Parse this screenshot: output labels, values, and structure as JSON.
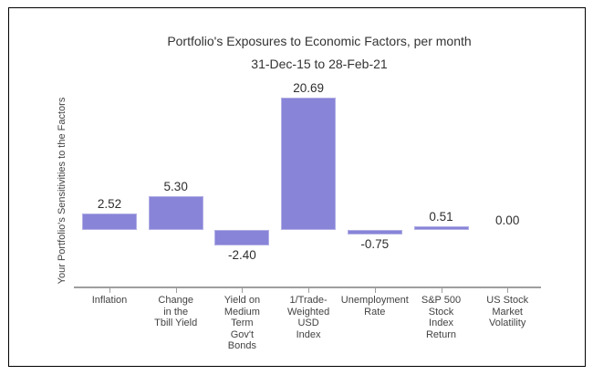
{
  "header": {
    "title": "Portfolio's Exposures to Economic Factors, per month",
    "subtitle": "31-Dec-15 to 28-Feb-21"
  },
  "chart_data": {
    "type": "bar",
    "title": "Portfolio's Exposures to Economic Factors, per month",
    "subtitle": "31-Dec-15 to 28-Feb-21",
    "xlabel": "",
    "ylabel": "Your Portfolio's Sensitivities to the Factors",
    "categories": [
      "Inflation",
      "Change\nin the\nTbill Yield",
      "Yield on\nMedium\nTerm\nGov't\nBonds",
      "1/Trade-\nWeighted\nUSD\nIndex",
      "Unemployment\nRate",
      "S&P 500\nStock\nIndex\nReturn",
      "US Stock\nMarket\nVolatility"
    ],
    "values": [
      2.52,
      5.3,
      -2.4,
      20.69,
      -0.75,
      0.51,
      0.0
    ],
    "value_labels": [
      "2.52",
      "5.30",
      "-2.40",
      "20.69",
      "-0.75",
      "0.51",
      "0.00"
    ],
    "ylim": [
      -9,
      24
    ],
    "grid": false,
    "legend": "none",
    "colors": {
      "bar": "#8884d8",
      "axis": "#9e9e9e",
      "text": "#424242",
      "value_text": "#2e2e2e",
      "title_text": "#333333",
      "frame_border": "#000000"
    }
  }
}
